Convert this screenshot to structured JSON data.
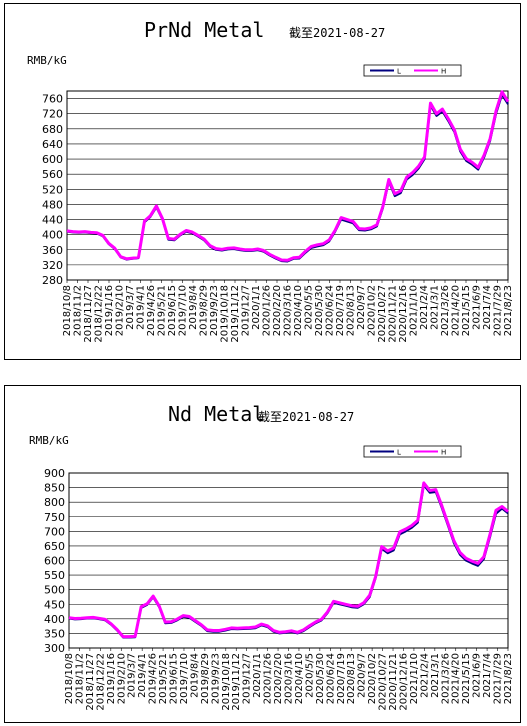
{
  "chart_data": [
    {
      "type": "line",
      "title": "PrNd Metal",
      "subtitle": "截至2021-08-27",
      "ylabel": "RMB/kG",
      "ylim": [
        280,
        780
      ],
      "yticks": [
        280,
        320,
        360,
        400,
        440,
        480,
        520,
        560,
        600,
        640,
        680,
        720,
        760
      ],
      "xticks": [
        "2018/10/8",
        "2018/11/2",
        "2018/11/27",
        "2018/12/22",
        "2019/1/16",
        "2019/2/10",
        "2019/3/7",
        "2019/4/1",
        "2019/4/26",
        "2019/5/21",
        "2019/6/15",
        "2019/7/10",
        "2019/8/4",
        "2019/8/29",
        "2019/9/23",
        "2019/10/18",
        "2019/11/12",
        "2019/12/7",
        "2020/1/1",
        "2020/1/26",
        "2020/2/20",
        "2020/3/16",
        "2020/4/10",
        "2020/5/5",
        "2020/5/30",
        "2020/6/24",
        "2020/7/19",
        "2020/8/13",
        "2020/9/7",
        "2020/10/2",
        "2020/10/27",
        "2020/11/21",
        "2020/12/16",
        "2021/1/10",
        "2021/2/4",
        "2021/3/1",
        "2021/3/26",
        "2021/4/20",
        "2021/5/15",
        "2021/6/9",
        "2021/7/4",
        "2021/7/29",
        "2021/8/23"
      ],
      "grid": true,
      "legend_position": "top-right",
      "series": [
        {
          "name": "L",
          "color": "#000080",
          "values": [
            408,
            406,
            405,
            406,
            404,
            403,
            396,
            375,
            362,
            340,
            334,
            336,
            338,
            433,
            447,
            472,
            440,
            387,
            385,
            398,
            408,
            404,
            395,
            385,
            368,
            360,
            358,
            361,
            362,
            359,
            357,
            357,
            359,
            355,
            345,
            337,
            330,
            329,
            336,
            337,
            352,
            365,
            369,
            372,
            382,
            408,
            440,
            435,
            430,
            412,
            411,
            414,
            422,
            470,
            540,
            502,
            510,
            546,
            558,
            575,
            600,
            742,
            714,
            726,
            700,
            671,
            620,
            595,
            585,
            572,
            605,
            648,
            720,
            770,
            745
          ]
        },
        {
          "name": "H",
          "color": "#ff00ff",
          "values": [
            410,
            408,
            407,
            408,
            406,
            405,
            398,
            377,
            364,
            342,
            336,
            338,
            340,
            436,
            450,
            476,
            443,
            390,
            388,
            401,
            411,
            407,
            398,
            388,
            371,
            363,
            361,
            364,
            365,
            362,
            360,
            360,
            362,
            358,
            348,
            340,
            333,
            332,
            339,
            340,
            356,
            369,
            373,
            376,
            386,
            412,
            445,
            440,
            435,
            416,
            415,
            418,
            426,
            475,
            546,
            508,
            516,
            552,
            564,
            581,
            606,
            748,
            720,
            732,
            706,
            677,
            626,
            601,
            591,
            578,
            611,
            654,
            728,
            778,
            752
          ]
        }
      ]
    },
    {
      "type": "line",
      "title": "Nd Metal",
      "subtitle": "截至2021-08-27",
      "ylabel": "RMB/kG",
      "ylim": [
        300,
        900
      ],
      "yticks": [
        300,
        350,
        400,
        450,
        500,
        550,
        600,
        650,
        700,
        750,
        800,
        850,
        900
      ],
      "xticks": [
        "2018/10/8",
        "2018/11/2",
        "2018/11/27",
        "2018/12/22",
        "2019/1/16",
        "2019/2/10",
        "2019/3/7",
        "2019/4/1",
        "2019/4/26",
        "2019/5/21",
        "2019/6/15",
        "2019/7/10",
        "2019/8/4",
        "2019/8/29",
        "2019/9/23",
        "2019/10/18",
        "2019/11/12",
        "2019/12/7",
        "2020/1/1",
        "2020/1/26",
        "2020/2/20",
        "2020/3/16",
        "2020/4/10",
        "2020/5/5",
        "2020/5/30",
        "2020/6/24",
        "2020/7/19",
        "2020/8/13",
        "2020/9/7",
        "2020/10/2",
        "2020/10/27",
        "2020/11/21",
        "2020/12/16",
        "2021/1/10",
        "2021/2/4",
        "2021/3/1",
        "2021/3/26",
        "2021/4/20",
        "2021/5/15",
        "2021/6/9",
        "2021/7/4",
        "2021/7/29",
        "2021/8/23"
      ],
      "grid": true,
      "legend_position": "top-right",
      "series": [
        {
          "name": "L",
          "color": "#000080",
          "values": [
            401,
            398,
            399,
            401,
            402,
            399,
            395,
            380,
            360,
            336,
            336,
            337,
            438,
            448,
            474,
            440,
            385,
            386,
            395,
            407,
            404,
            390,
            376,
            358,
            356,
            356,
            360,
            365,
            364,
            365,
            366,
            368,
            378,
            372,
            356,
            350,
            352,
            355,
            350,
            358,
            372,
            385,
            395,
            420,
            455,
            450,
            445,
            440,
            438,
            450,
            475,
            540,
            640,
            625,
            635,
            690,
            700,
            712,
            730,
            858,
            832,
            835,
            780,
            720,
            660,
            620,
            600,
            590,
            582,
            605,
            680,
            760,
            778,
            762
          ]
        },
        {
          "name": "H",
          "color": "#ff00ff",
          "values": [
            404,
            401,
            402,
            404,
            405,
            402,
            398,
            383,
            363,
            339,
            339,
            340,
            442,
            452,
            478,
            444,
            389,
            390,
            399,
            411,
            408,
            394,
            380,
            362,
            360,
            360,
            364,
            369,
            368,
            369,
            370,
            372,
            382,
            376,
            360,
            354,
            356,
            359,
            354,
            362,
            376,
            389,
            399,
            424,
            460,
            455,
            450,
            445,
            443,
            455,
            481,
            546,
            648,
            633,
            643,
            698,
            708,
            720,
            738,
            866,
            840,
            843,
            788,
            728,
            668,
            628,
            608,
            598,
            590,
            613,
            690,
            772,
            785,
            768
          ]
        }
      ]
    }
  ]
}
